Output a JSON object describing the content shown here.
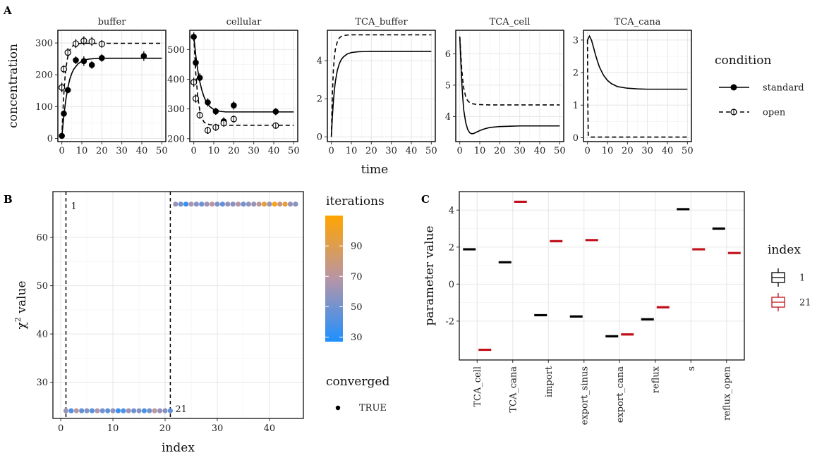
{
  "figure": {
    "panel_labels": [
      "A",
      "B",
      "C"
    ]
  },
  "chart_data": [
    {
      "panel": "A",
      "type": "line",
      "facets": [
        "buffer",
        "cellular",
        "TCA_buffer",
        "TCA_cell",
        "TCA_cana"
      ],
      "xlabel": "time",
      "ylabel": "concentration",
      "x_ticks": [
        0,
        10,
        20,
        30,
        40,
        50
      ],
      "xlim": [
        -2,
        52
      ],
      "legend": {
        "title": "condition",
        "entries": [
          {
            "label": "standard",
            "linestyle": "solid",
            "marker": "filled-circle"
          },
          {
            "label": "open",
            "linestyle": "dashed",
            "marker": "open-circle"
          }
        ],
        "placement": "right"
      },
      "subplots": [
        {
          "facet": "buffer",
          "ylim": [
            -10,
            340
          ],
          "y_ticks": [
            0,
            100,
            200,
            300
          ],
          "series": [
            {
              "name": "standard",
              "line": {
                "x": [
                  0,
                  1,
                  2,
                  3,
                  4,
                  5,
                  6,
                  8,
                  10,
                  13,
                  16,
                  20,
                  25,
                  30,
                  40,
                  50
                ],
                "y": [
                  5,
                  72,
                  122,
                  160,
                  187,
                  205,
                  218,
                  234,
                  243,
                  249,
                  251,
                  252,
                  252,
                  252,
                  252,
                  252
                ]
              },
              "points": [
                {
                  "x": 0,
                  "y": 8,
                  "err": 5
                },
                {
                  "x": 1,
                  "y": 78,
                  "err": 10
                },
                {
                  "x": 3,
                  "y": 152,
                  "err": 10
                },
                {
                  "x": 7,
                  "y": 246,
                  "err": 12
                },
                {
                  "x": 11,
                  "y": 243,
                  "err": 15
                },
                {
                  "x": 15,
                  "y": 231,
                  "err": 12
                },
                {
                  "x": 20,
                  "y": 253,
                  "err": 12
                },
                {
                  "x": 41,
                  "y": 259,
                  "err": 15
                }
              ]
            },
            {
              "name": "open",
              "line": {
                "x": [
                  0,
                  0.5,
                  1,
                  1.5,
                  2,
                  3,
                  4,
                  5,
                  6,
                  8,
                  10,
                  13,
                  16,
                  20,
                  25,
                  30,
                  40,
                  50
                ],
                "y": [
                  5,
                  80,
                  140,
                  185,
                  220,
                  258,
                  278,
                  288,
                  294,
                  298,
                  299,
                  299,
                  299,
                  299,
                  299,
                  299,
                  299,
                  299
                ]
              },
              "points": [
                {
                  "x": 0,
                  "y": 160,
                  "err": 15
                },
                {
                  "x": 1,
                  "y": 218,
                  "err": 12
                },
                {
                  "x": 3,
                  "y": 270,
                  "err": 14
                },
                {
                  "x": 7,
                  "y": 298,
                  "err": 14
                },
                {
                  "x": 11,
                  "y": 307,
                  "err": 14
                },
                {
                  "x": 15,
                  "y": 305,
                  "err": 14
                },
                {
                  "x": 20,
                  "y": 297,
                  "err": 12
                }
              ]
            }
          ]
        },
        {
          "facet": "cellular",
          "ylim": [
            190,
            565
          ],
          "y_ticks": [
            200,
            300,
            400,
            500
          ],
          "series": [
            {
              "name": "standard",
              "line": {
                "x": [
                  0,
                  1,
                  2,
                  3,
                  4,
                  5,
                  6,
                  8,
                  10,
                  13,
                  16,
                  20,
                  25,
                  30,
                  40,
                  50
                ],
                "y": [
                  545,
                  480,
                  430,
                  392,
                  364,
                  343,
                  327,
                  308,
                  298,
                  292,
                  290,
                  290,
                  290,
                  290,
                  290,
                  290
                ]
              },
              "points": [
                {
                  "x": 0,
                  "y": 543,
                  "err": 15
                },
                {
                  "x": 1,
                  "y": 456,
                  "err": 15
                },
                {
                  "x": 3,
                  "y": 405,
                  "err": 15
                },
                {
                  "x": 7,
                  "y": 322,
                  "err": 14
                },
                {
                  "x": 11,
                  "y": 292,
                  "err": 12
                },
                {
                  "x": 15,
                  "y": 258,
                  "err": 14
                },
                {
                  "x": 20,
                  "y": 312,
                  "err": 14
                },
                {
                  "x": 41,
                  "y": 291,
                  "err": 12
                }
              ]
            },
            {
              "name": "open",
              "line": {
                "x": [
                  0,
                  1,
                  2,
                  3,
                  4,
                  5,
                  6,
                  8,
                  10,
                  13,
                  16,
                  20,
                  25,
                  30,
                  40,
                  50
                ],
                "y": [
                  545,
                  420,
                  340,
                  295,
                  270,
                  257,
                  251,
                  247,
                  246,
                  245,
                  245,
                  245,
                  245,
                  245,
                  245,
                  245
                ]
              },
              "points": [
                {
                  "x": 0,
                  "y": 390,
                  "err": 15
                },
                {
                  "x": 1,
                  "y": 335,
                  "err": 14
                },
                {
                  "x": 3,
                  "y": 279,
                  "err": 12
                },
                {
                  "x": 7,
                  "y": 228,
                  "err": 12
                },
                {
                  "x": 11,
                  "y": 238,
                  "err": 12
                },
                {
                  "x": 15,
                  "y": 252,
                  "err": 12
                },
                {
                  "x": 20,
                  "y": 266,
                  "err": 12
                },
                {
                  "x": 41,
                  "y": 244,
                  "err": 10
                }
              ]
            }
          ]
        },
        {
          "facet": "TCA_buffer",
          "ylim": [
            -0.25,
            5.6
          ],
          "y_ticks": [
            0,
            2,
            4
          ],
          "series": [
            {
              "name": "standard",
              "line": {
                "x": [
                  0,
                  0.5,
                  1,
                  1.5,
                  2,
                  3,
                  4,
                  5,
                  6,
                  8,
                  10,
                  13,
                  16,
                  20,
                  30,
                  40,
                  50
                ],
                "y": [
                  0,
                  1.05,
                  1.85,
                  2.45,
                  2.9,
                  3.5,
                  3.85,
                  4.07,
                  4.2,
                  4.36,
                  4.43,
                  4.47,
                  4.48,
                  4.49,
                  4.49,
                  4.49,
                  4.49
                ]
              }
            },
            {
              "name": "open",
              "line": {
                "x": [
                  0,
                  0.5,
                  1,
                  1.5,
                  2,
                  3,
                  4,
                  5,
                  6,
                  8,
                  10,
                  13,
                  16,
                  20,
                  30,
                  40,
                  50
                ],
                "y": [
                  0,
                  2.2,
                  3.5,
                  4.2,
                  4.6,
                  5.0,
                  5.2,
                  5.28,
                  5.32,
                  5.35,
                  5.36,
                  5.36,
                  5.36,
                  5.36,
                  5.36,
                  5.36,
                  5.36
                ]
              }
            }
          ]
        },
        {
          "facet": "TCA_cell",
          "ylim": [
            3.2,
            6.75
          ],
          "y_ticks": [
            4,
            5,
            6
          ],
          "series": [
            {
              "name": "standard",
              "line": {
                "x": [
                  0,
                  0.5,
                  1,
                  1.5,
                  2,
                  3,
                  4,
                  5,
                  6,
                  7,
                  8,
                  9,
                  10,
                  12,
                  15,
                  20,
                  25,
                  30,
                  40,
                  50
                ],
                "y": [
                  6.55,
                  5.8,
                  5.1,
                  4.6,
                  4.2,
                  3.8,
                  3.58,
                  3.48,
                  3.45,
                  3.46,
                  3.49,
                  3.52,
                  3.55,
                  3.6,
                  3.65,
                  3.68,
                  3.69,
                  3.7,
                  3.7,
                  3.7
                ]
              }
            },
            {
              "name": "open",
              "line": {
                "x": [
                  0,
                  0.5,
                  1,
                  1.5,
                  2,
                  3,
                  4,
                  5,
                  6,
                  8,
                  10,
                  15,
                  20,
                  30,
                  40,
                  50
                ],
                "y": [
                  6.55,
                  6.0,
                  5.5,
                  5.15,
                  4.9,
                  4.62,
                  4.5,
                  4.44,
                  4.41,
                  4.39,
                  4.38,
                  4.37,
                  4.37,
                  4.37,
                  4.37,
                  4.37
                ]
              }
            }
          ]
        },
        {
          "facet": "TCA_cana",
          "ylim": [
            -0.12,
            3.3
          ],
          "y_ticks": [
            0,
            1,
            2,
            3
          ],
          "series": [
            {
              "name": "standard",
              "line": {
                "x": [
                  0,
                  1,
                  2,
                  3,
                  4,
                  5,
                  6,
                  8,
                  10,
                  12,
                  15,
                  20,
                  25,
                  30,
                  40,
                  50
                ],
                "y": [
                  3.0,
                  3.12,
                  3.0,
                  2.78,
                  2.55,
                  2.35,
                  2.17,
                  1.92,
                  1.76,
                  1.66,
                  1.57,
                  1.52,
                  1.5,
                  1.49,
                  1.49,
                  1.49
                ]
              }
            },
            {
              "name": "open",
              "line": {
                "x": [
                  0,
                  0.15,
                  0.4,
                  1,
                  2,
                  5,
                  10,
                  20,
                  30,
                  40,
                  50
                ],
                "y": [
                  3.0,
                  1.2,
                  0.08,
                  0.02,
                  0.02,
                  0.02,
                  0.02,
                  0.02,
                  0.02,
                  0.02,
                  0.02
                ]
              }
            }
          ]
        }
      ]
    },
    {
      "panel": "B",
      "type": "scatter",
      "xlabel": "index",
      "ylabel": "χ",
      "ylabel_superscript": "2",
      "ylabel_suffix": " value",
      "xlim": [
        -1.5,
        46.5
      ],
      "ylim": [
        22.5,
        69.5
      ],
      "x_ticks": [
        0,
        10,
        20,
        30,
        40
      ],
      "y_ticks": [
        30,
        40,
        50,
        60
      ],
      "grid": true,
      "vlines": [
        {
          "x": 1,
          "label": "1",
          "label_pos": "top"
        },
        {
          "x": 21,
          "label": "21",
          "label_pos": "bottom"
        }
      ],
      "annotation_color": "#c0392b",
      "points": {
        "x": [
          1,
          2,
          3,
          4,
          5,
          6,
          7,
          8,
          9,
          10,
          11,
          12,
          13,
          14,
          15,
          16,
          17,
          18,
          19,
          20,
          21,
          22,
          23,
          24,
          25,
          26,
          27,
          28,
          29,
          30,
          31,
          32,
          33,
          34,
          35,
          36,
          37,
          38,
          39,
          40,
          41,
          42,
          43,
          44,
          45
        ],
        "y": [
          24.1,
          24.1,
          24.1,
          24.1,
          24.1,
          24.1,
          24.1,
          24.1,
          24.1,
          24.1,
          24.1,
          24.1,
          24.1,
          24.1,
          24.1,
          24.1,
          24.1,
          24.1,
          24.1,
          24.1,
          24.1,
          66.9,
          66.9,
          66.9,
          66.9,
          66.9,
          66.9,
          66.9,
          66.9,
          66.9,
          66.9,
          66.9,
          66.9,
          66.9,
          66.9,
          66.9,
          66.9,
          66.9,
          66.9,
          66.9,
          66.9,
          66.9,
          66.9,
          66.9,
          66.9
        ],
        "iterations": [
          60,
          40,
          70,
          45,
          55,
          42,
          66,
          50,
          45,
          58,
          35,
          40,
          62,
          48,
          55,
          40,
          50,
          70,
          60,
          55,
          45,
          60,
          50,
          35,
          65,
          55,
          48,
          62,
          70,
          52,
          45,
          60,
          55,
          68,
          50,
          58,
          60,
          72,
          95,
          60,
          105,
          75,
          95,
          60,
          55
        ]
      },
      "colorbar": {
        "title": "iterations",
        "min": 27,
        "max": 110,
        "ticks": [
          30,
          50,
          70,
          90
        ],
        "low_color": "#1e90ff",
        "mid_color": "#b895a6",
        "high_color": "#ffa500"
      },
      "size_legend": {
        "title": "converged",
        "entries": [
          "TRUE"
        ]
      }
    },
    {
      "panel": "C",
      "type": "boxplot",
      "ylabel": "parameter value",
      "categories": [
        "TCA_cell",
        "TCA_cana",
        "import",
        "export_sinus",
        "export_cana",
        "reflux",
        "s",
        "reflux_open"
      ],
      "ylim": [
        -4.1,
        5.0
      ],
      "y_ticks": [
        -2,
        0,
        2,
        4
      ],
      "series": [
        {
          "name": "1",
          "color": "#000000",
          "values": [
            1.88,
            1.18,
            -1.68,
            -1.75,
            -2.82,
            -1.9,
            4.05,
            3.0
          ]
        },
        {
          "name": "21",
          "color": "#c0101a",
          "values": [
            -3.55,
            4.45,
            2.32,
            2.38,
            -2.72,
            -1.25,
            1.88,
            1.68
          ]
        }
      ],
      "legend": {
        "title": "index",
        "placement": "right"
      }
    }
  ]
}
